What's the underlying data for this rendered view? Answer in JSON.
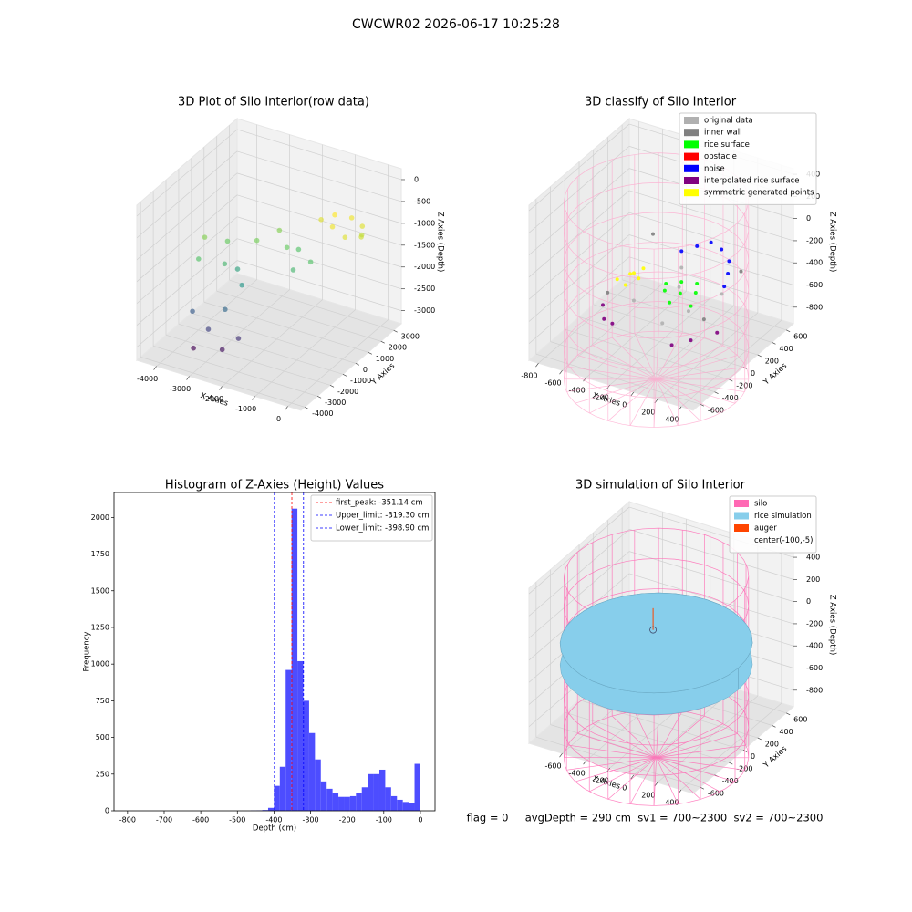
{
  "figure_title": "CWCWR02 2026-06-17 10:25:28",
  "status_text": "flag = 0     avgDepth = 290 cm  sv1 = 700~2300  sv2 = 700~2300",
  "chart_data": [
    {
      "type": "scatter3d",
      "title": "3D Plot of Silo Interior(row data)",
      "xlabel": "X Axies",
      "ylabel": "Y Axies",
      "zlabel": "Z Axies (Depth)",
      "xlim": [
        -4600,
        400
      ],
      "ylim": [
        -4300,
        3600
      ],
      "zlim": [
        -3300,
        250
      ],
      "xticks": [
        -4000,
        -3000,
        -2000,
        -1000,
        0
      ],
      "yticks": [
        -4000,
        -3000,
        -2000,
        -1000,
        0,
        1000,
        2000,
        3000
      ],
      "zticks": [
        -3000,
        -2500,
        -2000,
        -1500,
        -1000,
        -500,
        0
      ],
      "grid": true,
      "colormap": "viridis",
      "series": [
        {
          "x": [
            -1200,
            -800,
            -400,
            -200,
            -500,
            -1000,
            -1500,
            -300,
            -2500,
            -2000,
            -1800,
            -2800,
            -1500,
            -1200,
            -3500,
            -3200,
            -3000,
            -2600,
            -3800,
            -4000,
            -3600,
            -3000,
            -2500,
            -2200,
            -3300,
            -2800
          ],
          "y": [
            2500,
            2800,
            2600,
            2000,
            1500,
            1800,
            2200,
            2300,
            1500,
            800,
            1200,
            500,
            0,
            600,
            0,
            -1000,
            -500,
            -1200,
            -1500,
            -500,
            -2500,
            -2800,
            -3000,
            -2500,
            -3200,
            -2000
          ],
          "z": [
            -900,
            -950,
            -1000,
            -1050,
            -1000,
            -950,
            -1000,
            -1100,
            -1300,
            -1400,
            -1500,
            -1350,
            -1600,
            -1500,
            -1400,
            -1600,
            -1800,
            -1900,
            -1500,
            -1300,
            -2400,
            -2600,
            -2900,
            -2700,
            -3000,
            -2300
          ]
        }
      ]
    },
    {
      "type": "scatter3d",
      "title": "3D classify of Silo Interior",
      "xlabel": "X Axies",
      "ylabel": "Y Axies",
      "zlabel": "Z Axies (Depth)",
      "xlim": [
        -880,
        500
      ],
      "ylim": [
        -700,
        700
      ],
      "zlim": [
        -950,
        450
      ],
      "xticks": [
        -800,
        -600,
        -400,
        -200,
        0,
        200,
        400
      ],
      "yticks": [
        -600,
        -400,
        -200,
        0,
        200,
        400,
        600
      ],
      "zticks": [
        -800,
        -600,
        -400,
        -200,
        0,
        200,
        400
      ],
      "grid": true,
      "silo_wireframe": true,
      "series": [
        {
          "name": "original data",
          "color": "#b0b0b0",
          "x": [
            -300,
            -100,
            100,
            200,
            -200,
            0
          ],
          "y": [
            -200,
            100,
            -100,
            200,
            300,
            -300
          ],
          "z": [
            -500,
            -480,
            -520,
            -500,
            -450,
            -550
          ]
        },
        {
          "name": "inner wall",
          "color": "#808080",
          "x": [
            -500,
            -400,
            300,
            350
          ],
          "y": [
            400,
            -400,
            300,
            -300
          ],
          "z": [
            -300,
            -350,
            -320,
            -400
          ]
        },
        {
          "name": "rice surface",
          "color": "#00ff00",
          "x": [
            -100,
            0,
            100,
            -50,
            50,
            150,
            -150,
            0
          ],
          "y": [
            -100,
            -50,
            0,
            50,
            100,
            -150,
            0,
            -200
          ],
          "z": [
            -400,
            -420,
            -410,
            -390,
            -400,
            -430,
            -410,
            -420
          ]
        },
        {
          "name": "obstacle",
          "color": "#ff0000",
          "x": [],
          "y": [],
          "z": []
        },
        {
          "name": "noise",
          "color": "#0000ff",
          "x": [
            -200,
            -100,
            0,
            100,
            200,
            250,
            280
          ],
          "y": [
            300,
            350,
            380,
            360,
            300,
            200,
            100
          ],
          "z": [
            -300,
            -250,
            -200,
            -220,
            -260,
            -300,
            -350
          ]
        },
        {
          "name": "interpolated rice surface",
          "color": "#800080",
          "x": [
            -500,
            -400,
            -300,
            300,
            400,
            200
          ],
          "y": [
            -300,
            -450,
            -500,
            -400,
            -200,
            -500
          ],
          "z": [
            -550,
            -560,
            -540,
            -550,
            -560,
            -570
          ]
        },
        {
          "name": "symmetric generated points",
          "color": "#ffff00",
          "x": [
            -500,
            -450,
            -400,
            -350,
            -450,
            -400
          ],
          "y": [
            -100,
            0,
            100,
            -50,
            50,
            -150
          ],
          "z": [
            -430,
            -420,
            -410,
            -400,
            -440,
            -420
          ]
        }
      ]
    },
    {
      "type": "histogram",
      "title": "Histogram of Z-Axies (Height) Values",
      "xlabel": "Depth (cm)",
      "ylabel": "Frequency",
      "color": "#4d4dff",
      "xlim": [
        -837,
        40
      ],
      "ylim": [
        0,
        2170
      ],
      "xticks": [
        -800,
        -700,
        -600,
        -500,
        -400,
        -300,
        -200,
        -100,
        0
      ],
      "yticks": [
        0,
        250,
        500,
        750,
        1000,
        1250,
        1500,
        1750,
        2000
      ],
      "bins": [
        -464,
        -448,
        -432,
        -416,
        -400,
        -384,
        -368,
        -352,
        -336,
        -320,
        -304,
        -288,
        -272,
        -256,
        -240,
        -224,
        -208,
        -192,
        -176,
        -160,
        -144,
        -128,
        -112,
        -96,
        -80,
        -64,
        -48,
        -32,
        -16,
        0
      ],
      "values": [
        2,
        3,
        5,
        20,
        170,
        300,
        960,
        2060,
        1020,
        750,
        530,
        350,
        200,
        150,
        120,
        95,
        95,
        100,
        120,
        160,
        250,
        250,
        280,
        160,
        100,
        75,
        60,
        55,
        320
      ],
      "lines": [
        {
          "name": "first_peak: -351.14 cm",
          "value": -351.14,
          "color": "#ff0000"
        },
        {
          "name": "Upper_limit: -319.30 cm",
          "value": -319.3,
          "color": "#0000ff"
        },
        {
          "name": "Lower_limit: -398.90 cm",
          "value": -398.9,
          "color": "#0000ff"
        }
      ]
    },
    {
      "type": "surface3d",
      "title": "3D simulation of Silo Interior",
      "xlabel": "X Axies",
      "ylabel": "Y Axies",
      "zlabel": "Z Axies (Depth)",
      "xlim": [
        -880,
        500
      ],
      "ylim": [
        -700,
        700
      ],
      "zlim": [
        -950,
        450
      ],
      "xticks": [
        -600,
        -400,
        -200,
        0,
        200,
        400
      ],
      "yticks": [
        -600,
        -400,
        -200,
        0,
        200,
        400,
        600
      ],
      "zticks": [
        -800,
        -600,
        -400,
        -200,
        0,
        200,
        400
      ],
      "grid": true,
      "series": [
        {
          "name": "silo",
          "color": "#ff69b4"
        },
        {
          "name": "rice simulation",
          "color": "#87ceeb"
        },
        {
          "name": "auger",
          "color": "#ff4500"
        },
        {
          "name": "center(-100,-5)"
        }
      ]
    }
  ]
}
